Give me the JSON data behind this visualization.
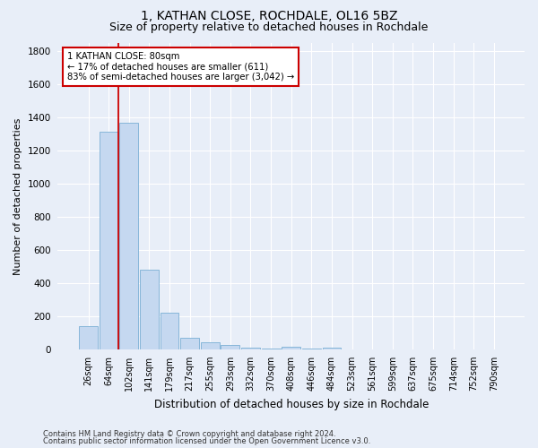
{
  "title": "1, KATHAN CLOSE, ROCHDALE, OL16 5BZ",
  "subtitle": "Size of property relative to detached houses in Rochdale",
  "xlabel": "Distribution of detached houses by size in Rochdale",
  "ylabel": "Number of detached properties",
  "footer_line1": "Contains HM Land Registry data © Crown copyright and database right 2024.",
  "footer_line2": "Contains public sector information licensed under the Open Government Licence v3.0.",
  "categories": [
    "26sqm",
    "64sqm",
    "102sqm",
    "141sqm",
    "179sqm",
    "217sqm",
    "255sqm",
    "293sqm",
    "332sqm",
    "370sqm",
    "408sqm",
    "446sqm",
    "484sqm",
    "523sqm",
    "561sqm",
    "599sqm",
    "637sqm",
    "675sqm",
    "714sqm",
    "752sqm",
    "790sqm"
  ],
  "values": [
    140,
    1315,
    1365,
    485,
    225,
    75,
    45,
    28,
    15,
    5,
    20,
    5,
    15,
    0,
    0,
    0,
    0,
    0,
    0,
    0,
    0
  ],
  "bar_color": "#c5d8f0",
  "bar_edge_color": "#7aafd4",
  "property_line_x": 1.5,
  "annotation_line1": "1 KATHAN CLOSE: 80sqm",
  "annotation_line2": "← 17% of detached houses are smaller (611)",
  "annotation_line3": "83% of semi-detached houses are larger (3,042) →",
  "ylim": [
    0,
    1850
  ],
  "yticks": [
    0,
    200,
    400,
    600,
    800,
    1000,
    1200,
    1400,
    1600,
    1800
  ],
  "annotation_box_color": "#cc0000",
  "vertical_line_color": "#cc0000",
  "background_color": "#e8eef8",
  "plot_bg_color": "#e8eef8",
  "title_fontsize": 10,
  "subtitle_fontsize": 9,
  "ylabel_fontsize": 8,
  "xlabel_fontsize": 8.5,
  "tick_fontsize": 7,
  "ytick_fontsize": 7.5,
  "footer_fontsize": 6
}
